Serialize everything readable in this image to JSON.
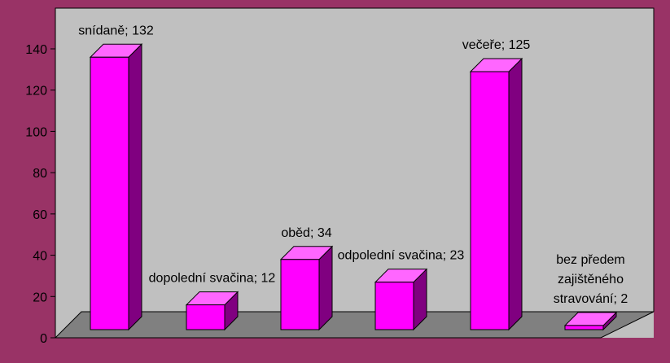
{
  "chart_data": {
    "type": "bar3d",
    "categories": [
      "snídaně",
      "dopolední svačina",
      "oběd",
      "odpolední svačina",
      "večeře",
      "bez předem zajištěného stravování"
    ],
    "values": [
      132,
      12,
      34,
      23,
      125,
      2
    ],
    "value_labels": [
      "snídaně; 132",
      "dopolední svačina; 12",
      "oběd; 34",
      "odpolední svačina; 23",
      "večeře; 125",
      "bez předem zajištěného stravování; 2"
    ],
    "color": "#ff00ff",
    "ylim": [
      0,
      140
    ],
    "yticks": [
      0,
      20,
      40,
      60,
      80,
      100,
      120,
      140
    ]
  }
}
